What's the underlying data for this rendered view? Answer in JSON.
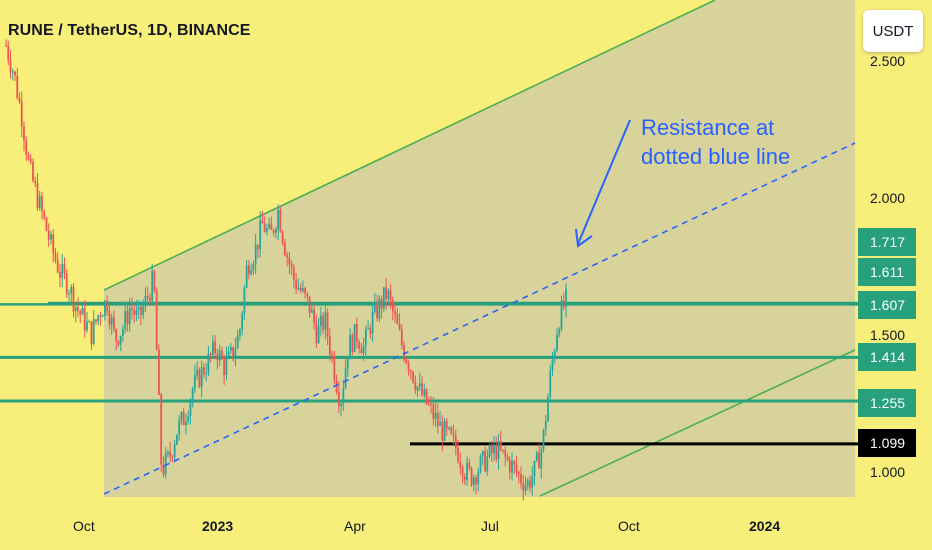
{
  "header": {
    "title": "RUNE / TetherUS, 1D, BINANCE",
    "currency_button": "USDT"
  },
  "annotation": {
    "line1": "Resistance at",
    "line2": "dotted blue line"
  },
  "colors": {
    "background": "#f8ee7a",
    "channel_fill": "#d8d39a",
    "channel_line": "#4caf50",
    "level_line": "#26a17b",
    "support_line": "#000000",
    "dotted_line": "#2962ff",
    "candle_up": "#26a69a",
    "candle_down": "#ef5350"
  },
  "chart_data": {
    "type": "candlestick",
    "title": "RUNE / TetherUS, 1D, BINANCE",
    "y_axis": {
      "visible_ticks": [
        "2.500",
        "2.000",
        "1.500",
        "1.000"
      ],
      "range": [
        0.93,
        2.6
      ]
    },
    "x_axis": {
      "ticks": [
        {
          "label": "Oct",
          "bold": false
        },
        {
          "label": "2023",
          "bold": true
        },
        {
          "label": "Apr",
          "bold": false
        },
        {
          "label": "Jul",
          "bold": false
        },
        {
          "label": "Oct",
          "bold": false
        },
        {
          "label": "2024",
          "bold": true
        }
      ]
    },
    "price_levels": [
      {
        "value": 1.717,
        "label": "1.717",
        "kind": "marker"
      },
      {
        "value": 1.611,
        "label": "1.611",
        "kind": "resistance"
      },
      {
        "value": 1.607,
        "label": "1.607",
        "kind": "current"
      },
      {
        "value": 1.414,
        "label": "1.414",
        "kind": "resistance"
      },
      {
        "value": 1.255,
        "label": "1.255",
        "kind": "resistance"
      },
      {
        "value": 1.099,
        "label": "1.099",
        "kind": "support"
      }
    ],
    "series": [
      {
        "close_path": [
          2.55,
          2.45,
          2.3,
          2.1,
          2.0,
          1.9,
          1.8,
          1.72,
          1.68,
          1.6,
          1.55,
          1.5,
          1.58,
          1.62,
          1.48,
          1.52,
          1.6,
          1.55,
          1.62,
          1.7,
          1.0,
          1.05,
          1.15,
          1.2,
          1.3,
          1.35,
          1.4,
          1.45,
          1.38,
          1.42,
          1.5,
          1.75,
          1.8,
          1.9,
          1.85,
          1.95,
          1.8,
          1.7,
          1.65,
          1.6,
          1.5,
          1.55,
          1.4,
          1.25,
          1.45,
          1.5,
          1.45,
          1.55,
          1.6,
          1.65,
          1.55,
          1.45,
          1.38,
          1.3,
          1.25,
          1.2,
          1.15,
          1.12,
          1.08,
          1.0,
          0.98,
          1.02,
          1.05,
          1.08,
          1.05,
          1.02,
          0.98,
          0.95,
          1.0,
          1.1,
          1.35,
          1.55,
          1.62
        ]
      }
    ]
  }
}
